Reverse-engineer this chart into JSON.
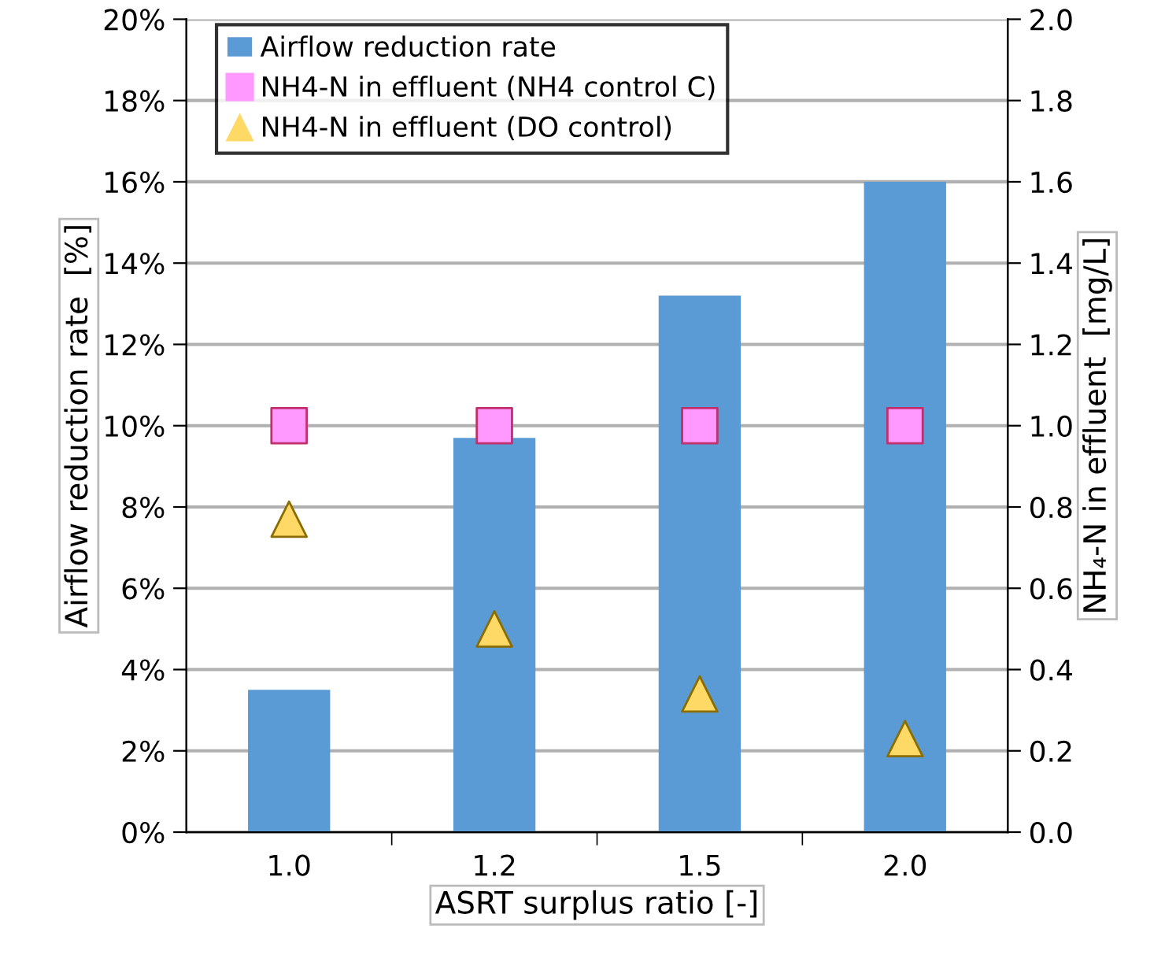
{
  "chart_data": {
    "type": "bar",
    "xlabel": "ASRT surplus ratio [-]",
    "ylabel": "Airflow reduction rate  [%]",
    "y2label": "NH₄-N in effluent  [mg/L]",
    "categories": [
      "1.0",
      "1.2",
      "1.5",
      "2.0"
    ],
    "series": [
      {
        "name": "Airflow reduction rate",
        "color": "#5b9bd5",
        "values": [
          3.5,
          9.7,
          13.2,
          16.0
        ]
      },
      {
        "name": "NH4-N in effluent (NH4 control C)",
        "type": "scatter",
        "axis": "y2",
        "marker": "square",
        "color": "#ff99ff",
        "values": [
          1.0,
          1.0,
          1.0,
          1.0
        ]
      },
      {
        "name": "NH4-N in effluent (DO control)",
        "type": "scatter",
        "axis": "y2",
        "marker": "triangle",
        "color": "#ffd966",
        "values": [
          0.77,
          0.5,
          0.34,
          0.23
        ]
      }
    ],
    "ylim": [
      0,
      20
    ],
    "yticks": [
      {
        "value": 0,
        "label": "0%"
      },
      {
        "value": 2,
        "label": "2%"
      },
      {
        "value": 4,
        "label": "4%"
      },
      {
        "value": 6,
        "label": "6%"
      },
      {
        "value": 8,
        "label": "8%"
      },
      {
        "value": 10,
        "label": "10%"
      },
      {
        "value": 12,
        "label": "12%"
      },
      {
        "value": 14,
        "label": "14%"
      },
      {
        "value": 16,
        "label": "16%"
      },
      {
        "value": 18,
        "label": "18%"
      },
      {
        "value": 20,
        "label": "20%"
      }
    ],
    "y2lim": [
      0,
      2.0
    ],
    "y2ticks": [
      {
        "value": 0,
        "label": "0.0"
      },
      {
        "value": 0.2,
        "label": "0.2"
      },
      {
        "value": 0.4,
        "label": "0.4"
      },
      {
        "value": 0.6,
        "label": "0.6"
      },
      {
        "value": 0.8,
        "label": "0.8"
      },
      {
        "value": 1.0,
        "label": "1.0"
      },
      {
        "value": 1.2,
        "label": "1.2"
      },
      {
        "value": 1.4,
        "label": "1.4"
      },
      {
        "value": 1.6,
        "label": "1.6"
      },
      {
        "value": 1.8,
        "label": "1.8"
      },
      {
        "value": 2.0,
        "label": "2.0"
      }
    ],
    "grid": "y",
    "legend": "top left"
  }
}
